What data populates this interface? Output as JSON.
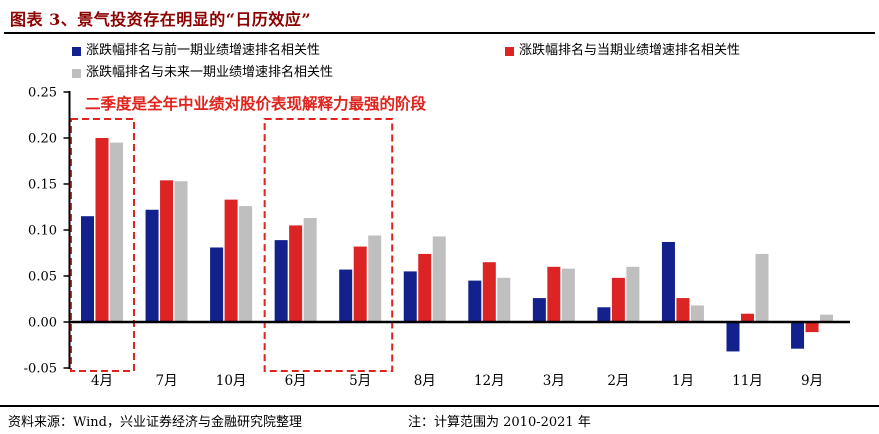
{
  "title": "图表 3、景气投资存在明显的“日历效应”",
  "colors": {
    "title": "#8B0000",
    "accent_red": "#E0231C",
    "axis": "#000000"
  },
  "legend": {
    "items": [
      {
        "label": "涨跌幅排名与前一期业绩增速排名相关性",
        "color": "#12218C"
      },
      {
        "label": "涨跌幅排名与当期业绩增速排名相关性",
        "color": "#DB2423"
      },
      {
        "label": "涨跌幅排名与未来一期业绩增速排名相关性",
        "color": "#BFBFBF"
      }
    ]
  },
  "footer": {
    "source": "资料来源：Wind，兴业证券经济与金融研究院整理",
    "note": "注：计算范围为 2010-2021 年"
  },
  "chart_data": {
    "type": "bar",
    "title": "",
    "xlabel": "",
    "ylabel": "",
    "categories": [
      "4月",
      "7月",
      "10月",
      "6月",
      "5月",
      "8月",
      "12月",
      "3月",
      "2月",
      "1月",
      "11月",
      "9月"
    ],
    "series": [
      {
        "name": "涨跌幅排名与前一期业绩增速排名相关性",
        "color": "#12218C",
        "values": [
          0.115,
          0.122,
          0.081,
          0.089,
          0.057,
          0.055,
          0.045,
          0.026,
          0.016,
          0.087,
          -0.032,
          -0.029
        ]
      },
      {
        "name": "涨跌幅排名与当期业绩增速排名相关性",
        "color": "#DB2423",
        "values": [
          0.2,
          0.154,
          0.133,
          0.105,
          0.082,
          0.074,
          0.065,
          0.06,
          0.048,
          0.026,
          0.009,
          -0.011
        ]
      },
      {
        "name": "涨跌幅排名与未来一期业绩增速排名相关性",
        "color": "#BFBFBF",
        "values": [
          0.195,
          0.153,
          0.126,
          0.113,
          0.094,
          0.093,
          0.048,
          0.058,
          0.06,
          0.018,
          0.074,
          0.008
        ]
      }
    ],
    "ylim": [
      -0.05,
      0.25
    ],
    "ytick_labels": [
      "0.25",
      "0.20",
      "0.15",
      "0.10",
      "0.05",
      "0.00",
      "-0.05"
    ],
    "grid": false,
    "legend_position": "top-left",
    "annotation": "二季度是全年中业绩对股价表现解释力最强的阶段",
    "highlight_boxes": [
      {
        "from": "4月",
        "to": "4月"
      },
      {
        "from": "6月",
        "to": "5月"
      }
    ]
  }
}
